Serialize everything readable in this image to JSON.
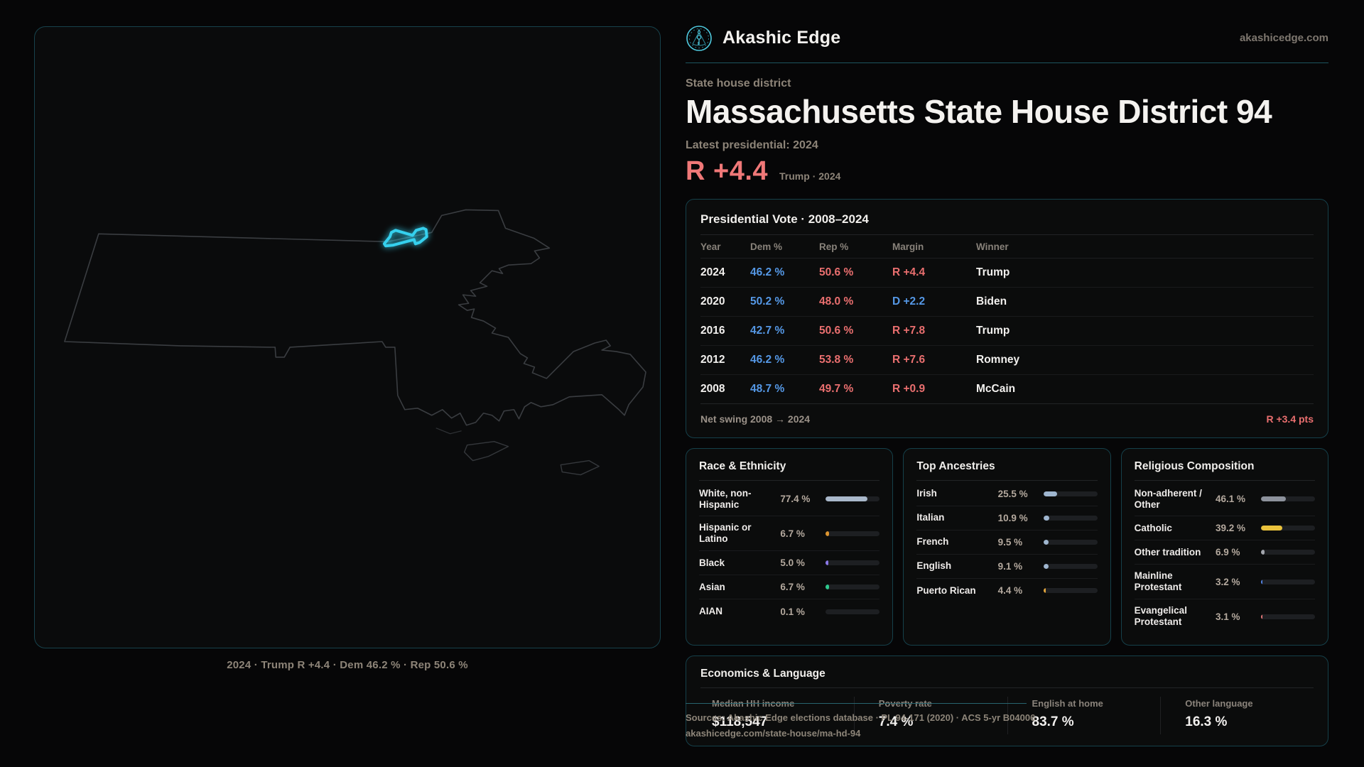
{
  "brand": {
    "name": "Akashic Edge",
    "domain": "akashicedge.com"
  },
  "header": {
    "kicker": "State house district",
    "title": "Massachusetts State House District 94",
    "subtitle": "Latest presidential: 2024",
    "hero_margin": "R +4.4",
    "hero_context": "Trump · 2024"
  },
  "map": {
    "caption": "2024 · Trump R +4.4 · Dem 46.2 % · Rep 50.6 %"
  },
  "presidential": {
    "title": "Presidential Vote · 2008–2024",
    "columns": [
      "Year",
      "Dem %",
      "Rep %",
      "Margin",
      "Winner"
    ],
    "rows": [
      {
        "year": "2024",
        "dem": "46.2 %",
        "rep": "50.6 %",
        "margin": "R +4.4",
        "party": "R",
        "winner": "Trump"
      },
      {
        "year": "2020",
        "dem": "50.2 %",
        "rep": "48.0 %",
        "margin": "D +2.2",
        "party": "D",
        "winner": "Biden"
      },
      {
        "year": "2016",
        "dem": "42.7 %",
        "rep": "50.6 %",
        "margin": "R +7.8",
        "party": "R",
        "winner": "Trump"
      },
      {
        "year": "2012",
        "dem": "46.2 %",
        "rep": "53.8 %",
        "margin": "R +7.6",
        "party": "R",
        "winner": "Romney"
      },
      {
        "year": "2008",
        "dem": "48.7 %",
        "rep": "49.7 %",
        "margin": "R +0.9",
        "party": "R",
        "winner": "McCain"
      }
    ],
    "net_swing_label": "Net swing 2008 → 2024",
    "net_swing_value": "R +3.4 pts"
  },
  "race": {
    "title": "Race & Ethnicity",
    "rows": [
      {
        "label": "White, non-Hispanic",
        "value": "77.4 %",
        "pct": 77.4,
        "color": "#a9b8ca"
      },
      {
        "label": "Hispanic or Latino",
        "value": "6.7 %",
        "pct": 6.7,
        "color": "#dd9530"
      },
      {
        "label": "Black",
        "value": "5.0 %",
        "pct": 5.0,
        "color": "#8b79e8"
      },
      {
        "label": "Asian",
        "value": "6.7 %",
        "pct": 6.7,
        "color": "#2ec98e"
      },
      {
        "label": "AIAN",
        "value": "0.1 %",
        "pct": 0.1,
        "color": "#a9b8ca"
      }
    ]
  },
  "ancestries": {
    "title": "Top Ancestries",
    "rows": [
      {
        "label": "Irish",
        "value": "25.5 %",
        "pct": 25.5,
        "color": "#9fb6cf"
      },
      {
        "label": "Italian",
        "value": "10.9 %",
        "pct": 10.9,
        "color": "#9fb6cf"
      },
      {
        "label": "French",
        "value": "9.5 %",
        "pct": 9.5,
        "color": "#9fb6cf"
      },
      {
        "label": "English",
        "value": "9.1 %",
        "pct": 9.1,
        "color": "#9fb6cf"
      },
      {
        "label": "Puerto Rican",
        "value": "4.4 %",
        "pct": 4.4,
        "color": "#e2a63c"
      }
    ]
  },
  "religion": {
    "title": "Religious Composition",
    "rows": [
      {
        "label": "Non-adherent / Other",
        "value": "46.1 %",
        "pct": 46.1,
        "color": "#8d929c"
      },
      {
        "label": "Catholic",
        "value": "39.2 %",
        "pct": 39.2,
        "color": "#eac23c"
      },
      {
        "label": "Other tradition",
        "value": "6.9 %",
        "pct": 6.9,
        "color": "#a3a6ad"
      },
      {
        "label": "Mainline Protestant",
        "value": "3.2 %",
        "pct": 3.2,
        "color": "#5585e8"
      },
      {
        "label": "Evangelical Protestant",
        "value": "3.1 %",
        "pct": 3.1,
        "color": "#e87878"
      }
    ]
  },
  "economics": {
    "title": "Economics & Language",
    "stats": [
      {
        "label": "Median HH income",
        "value": "$118,547"
      },
      {
        "label": "Poverty rate",
        "value": "7.4 %"
      },
      {
        "label": "English at home",
        "value": "83.7 %"
      },
      {
        "label": "Other language",
        "value": "16.3 %"
      }
    ]
  },
  "footer": {
    "line1": "Sources: Akashic Edge elections database · PL 94-171 (2020) · ACS 5-yr B04006",
    "line2": "akashicedge.com/state-house/ma-hd-94"
  },
  "colors": {
    "accent_cyan": "#35d0ee",
    "dem_blue": "#5598e6",
    "rep_red": "#ea6f6f",
    "panel_border_teal": "#17424c",
    "muted_text": "#8d8478"
  }
}
